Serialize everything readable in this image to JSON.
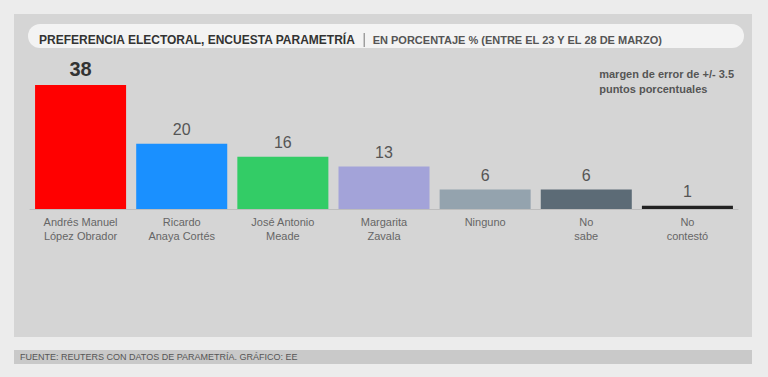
{
  "chart_data": {
    "type": "bar",
    "title": "PREFERENCIA ELECTORAL, ENCUESTA PARAMETRÍA",
    "subtitle": "EN PORCENTAJE % (ENTRE EL 23 Y EL 28 DE MARZO)",
    "annotations": [
      "margen de error de +/- 3.5\npuntos porcentuales"
    ],
    "source": "FUENTE: REUTERS CON DATOS DE PARAMETRÍA. GRÁFICO: EE",
    "categories": [
      "Andrés Manuel\nLópez Obrador",
      "Ricardo\nAnaya Cortés",
      "José Antonio\nMeade",
      "Margarita\nZavala",
      "Ninguno",
      "No\nsabe",
      "No\ncontestó"
    ],
    "values": [
      38,
      20,
      16,
      13,
      6,
      6,
      1
    ],
    "colors": [
      "#ff0000",
      "#1a90ff",
      "#33cc66",
      "#a3a3d9",
      "#94a3ae",
      "#5c6b76",
      "#222222"
    ],
    "ylim": [
      0,
      38
    ],
    "tick_labels": "x",
    "grid": false,
    "data_labels": true
  }
}
